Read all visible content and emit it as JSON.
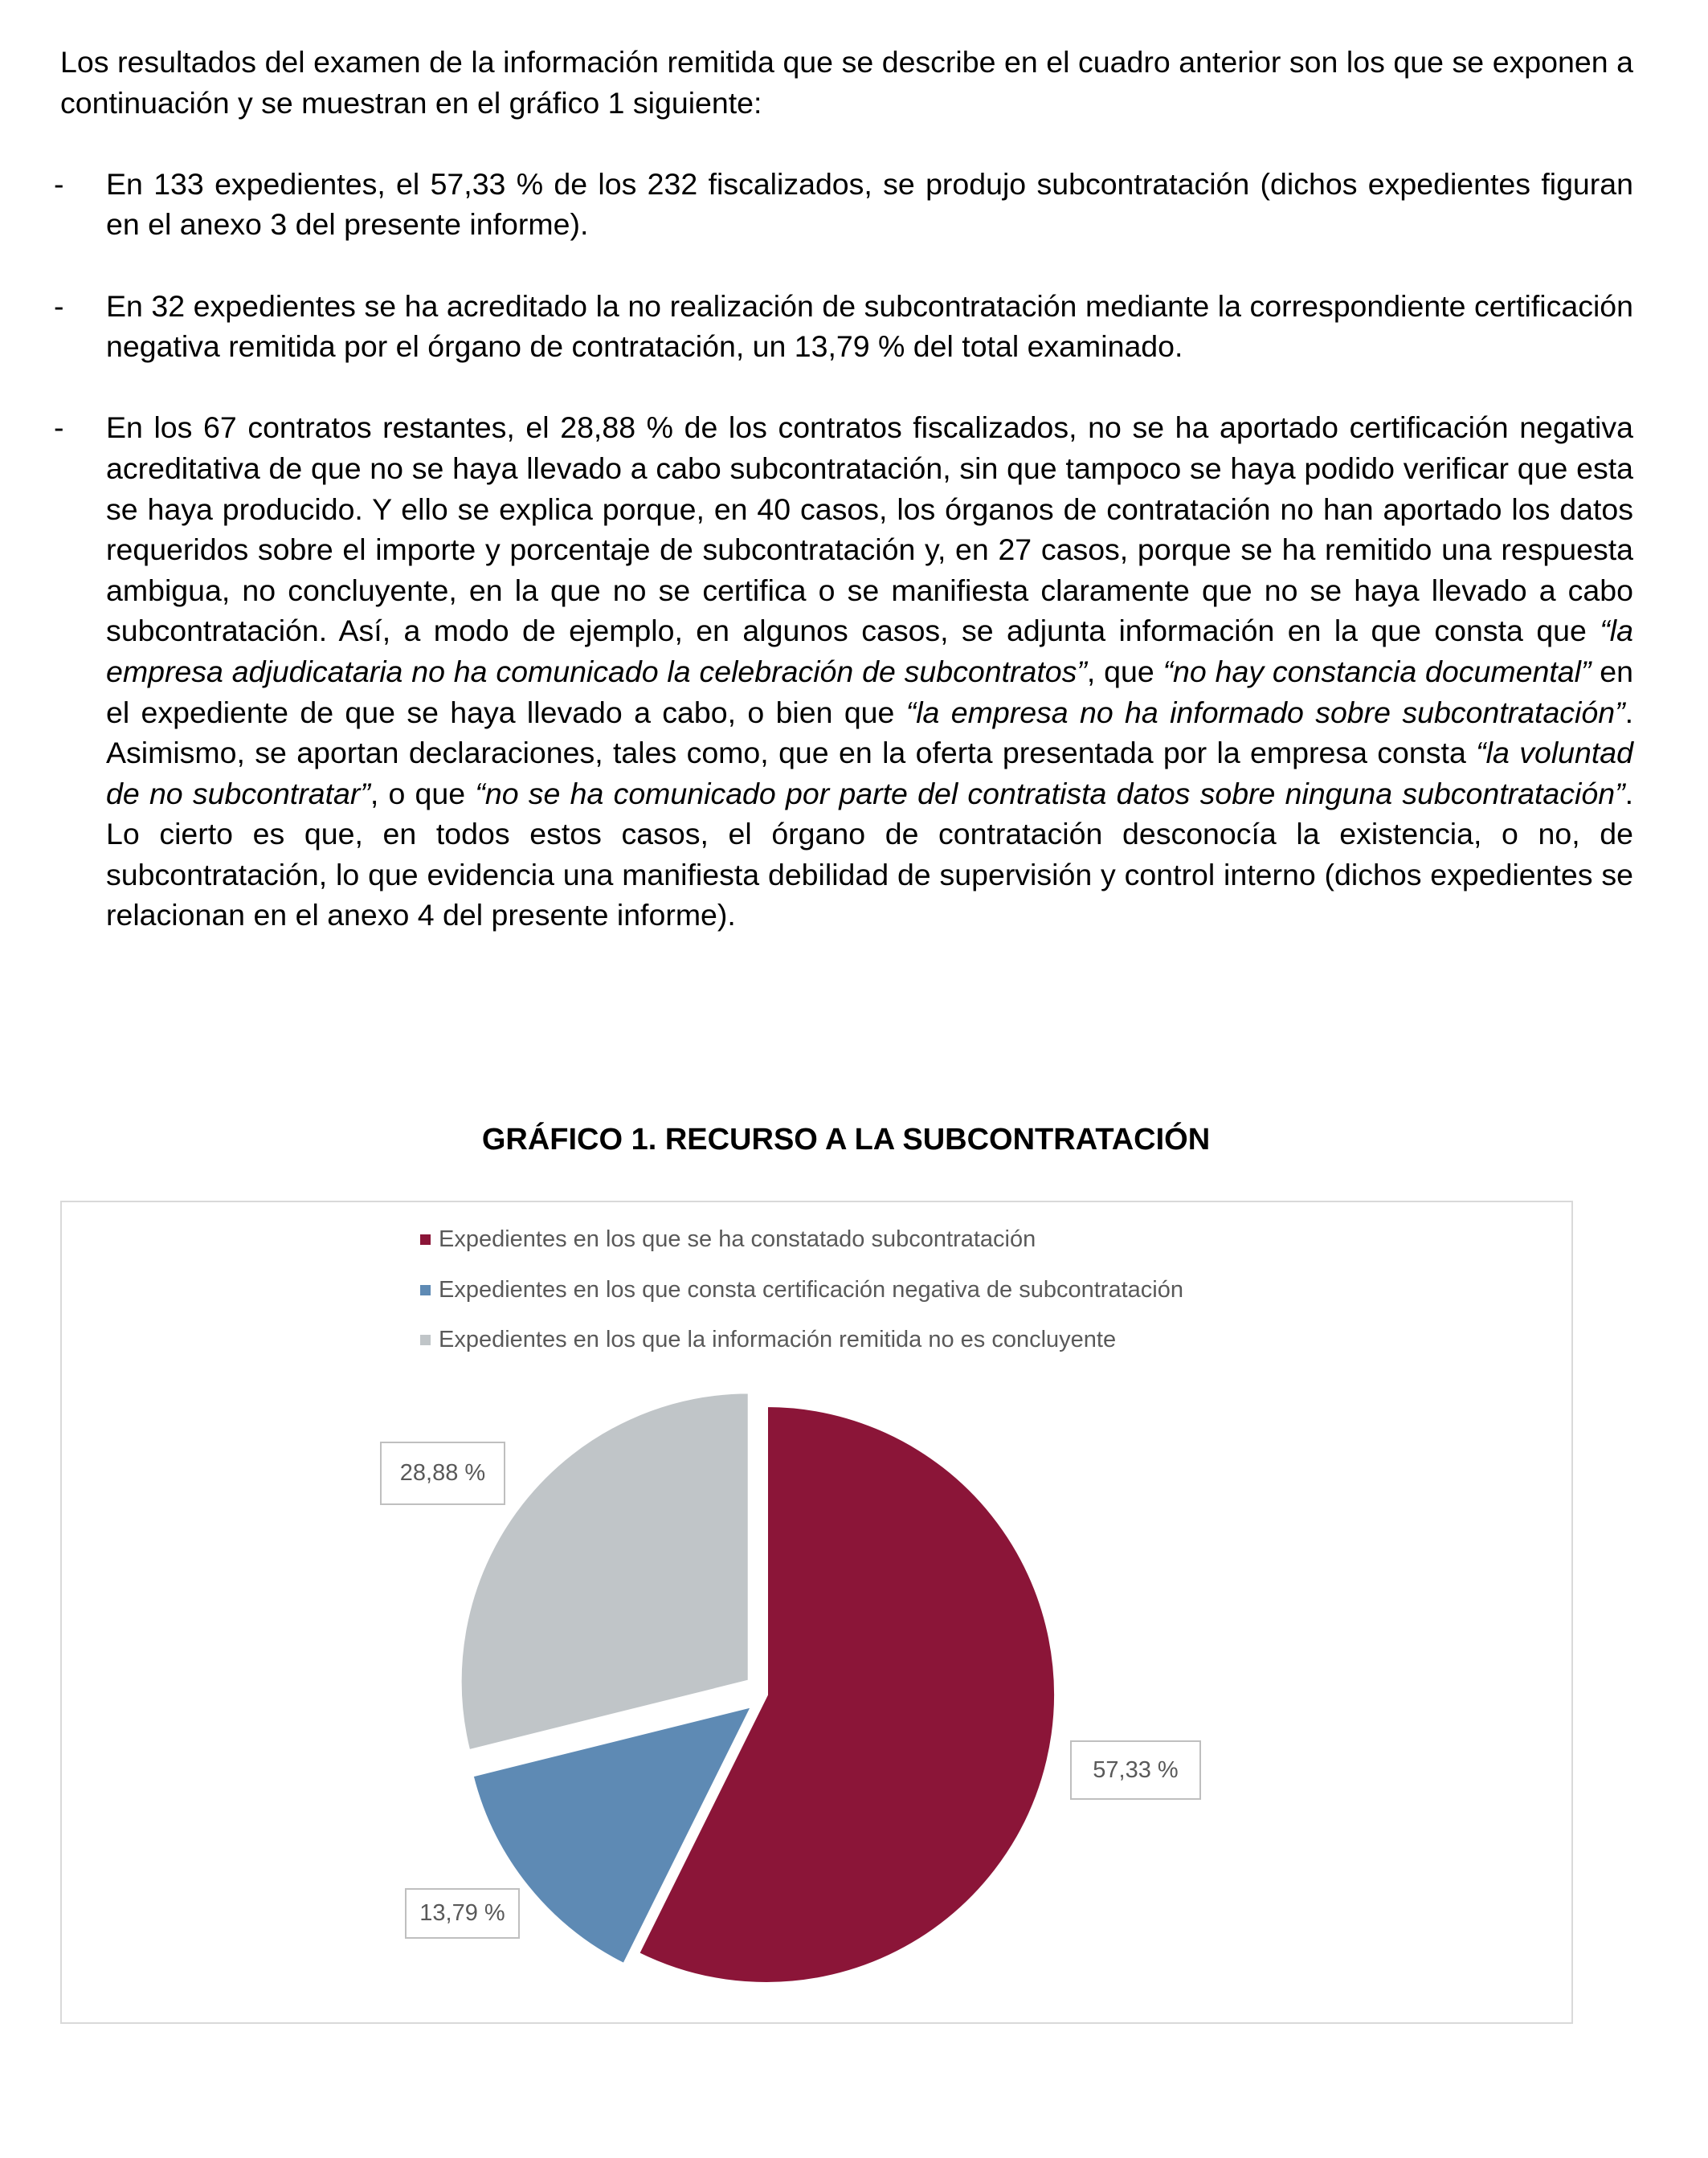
{
  "intro": "Los resultados del examen de la información remitida que se describe en el cuadro anterior son los que se exponen a continuación y se muestran en el gráfico 1 siguiente:",
  "bullet_marker": "-",
  "bullets": [
    [
      {
        "t": "En 133 expedientes, el 57,33 % de los 232 fiscalizados, se produjo subcontratación (dichos expedientes figuran en el anexo 3 del presente informe).",
        "i": false
      }
    ],
    [
      {
        "t": "En 32 expedientes se ha acreditado la no realización de subcontratación mediante la correspondiente certificación negativa remitida por el órgano de contratación, un 13,79 % del total examinado.",
        "i": false
      }
    ],
    [
      {
        "t": "En los 67 contratos restantes, el 28,88 % de los contratos fiscalizados, no se ha aportado certificación negativa acreditativa de que no se haya llevado a cabo subcontratación, sin que tampoco se haya podido verificar que esta se haya producido. Y ello se explica porque, en 40 casos, los órganos de contratación no han aportado los datos requeridos sobre el importe y porcentaje de subcontratación y, en 27 casos, porque se ha remitido una respuesta ambigua, no concluyente, en la que no se certifica o se manifiesta claramente que no se haya llevado a cabo subcontratación. Así, a modo de ejemplo, en algunos casos, se adjunta información en la que consta que ",
        "i": false
      },
      {
        "t": "“la empresa adjudicataria no ha comunicado la celebración de subcontratos”",
        "i": true
      },
      {
        "t": ", que ",
        "i": false
      },
      {
        "t": "“no hay constancia documental”",
        "i": true
      },
      {
        "t": " en el expediente de que se haya llevado a cabo, o bien que ",
        "i": false
      },
      {
        "t": "“la empresa no ha informado sobre subcontratación”",
        "i": true
      },
      {
        "t": ". Asimismo, se aportan declaraciones, tales como, que en la oferta presentada por la empresa consta ",
        "i": false
      },
      {
        "t": "“la voluntad de no subcontratar”",
        "i": true
      },
      {
        "t": ", o que ",
        "i": false
      },
      {
        "t": "“no se ha comunicado por parte del contratista datos sobre ninguna subcontratación”",
        "i": true
      },
      {
        "t": ". Lo cierto es que, en todos estos casos, el órgano de contratación desconocía la existencia, o no, de subcontratación, lo que evidencia una manifiesta debilidad de supervisión y control interno (dichos expedientes se relacionan en el anexo 4 del presente informe).",
        "i": false
      }
    ]
  ],
  "chart_title": "GRÁFICO 1. RECURSO A LA SUBCONTRATACIÓN",
  "chart_data": {
    "type": "pie",
    "title": "GRÁFICO 1. RECURSO A LA SUBCONTRATACIÓN",
    "legend_position": "top",
    "exploded": true,
    "series": [
      {
        "name": "Expedientes en los que se ha constatado subcontratación",
        "value": 57.33,
        "label": "57,33 %",
        "color": "#8b1538"
      },
      {
        "name": "Expedientes en los que consta certificación negativa de subcontratación",
        "value": 13.79,
        "label": "13,79 %",
        "color": "#5e8ab4"
      },
      {
        "name": "Expedientes en los que la información remitida no es concluyente",
        "value": 28.88,
        "label": "28,88 %",
        "color": "#c0c5c8"
      }
    ]
  }
}
